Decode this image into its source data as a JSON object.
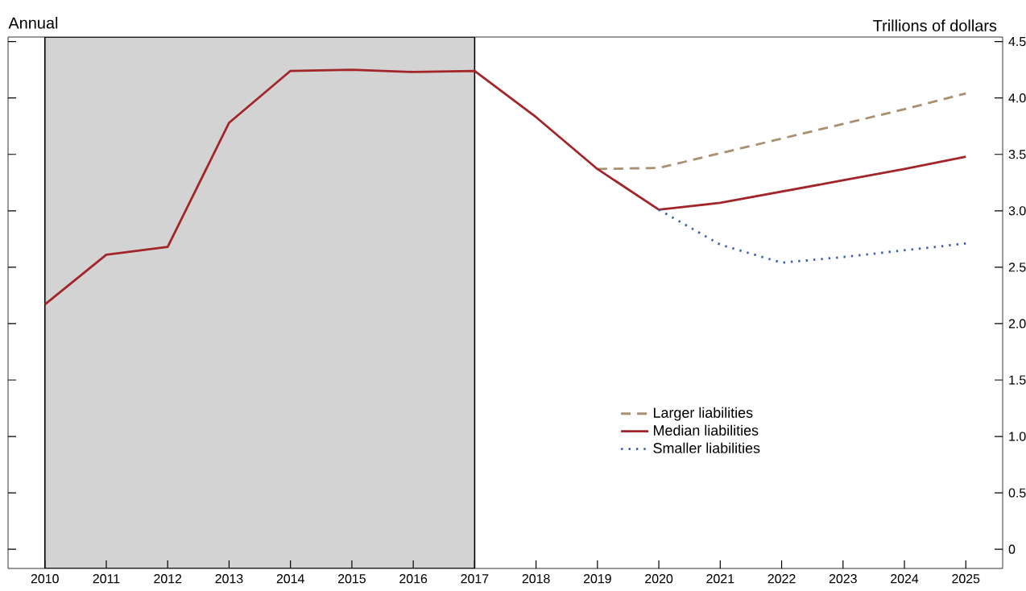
{
  "chart_data": {
    "type": "line",
    "ylabel": "Trillions of dollars",
    "annotations": [
      "Annual"
    ],
    "xlim": [
      2009.4,
      2025.6
    ],
    "ylim": [
      -0.17,
      4.54
    ],
    "xticks": [
      2010,
      2011,
      2012,
      2013,
      2014,
      2015,
      2016,
      2017,
      2018,
      2019,
      2020,
      2021,
      2022,
      2023,
      2024,
      2025
    ],
    "yticks": [
      0,
      0.5,
      {
        "value": 1,
        "label": "1.0"
      },
      1.5,
      {
        "value": 2,
        "label": "2.0"
      },
      2.5,
      {
        "value": 3,
        "label": "3.0"
      },
      3.5,
      {
        "value": 4,
        "label": "4.0"
      },
      4.5
    ],
    "grid": false,
    "legend": "bottom right",
    "marker": "none",
    "bands": [
      {
        "axis": "x",
        "from": 2010,
        "to": 2017,
        "color": "#d3d3d3"
      }
    ],
    "series": [
      {
        "name": "Larger liabilities",
        "color": "#a89070",
        "line_style": "dashed",
        "x": [
          2019,
          2020,
          2021,
          2022,
          2023,
          2024,
          2025
        ],
        "values": [
          3.37,
          3.38,
          3.51,
          3.64,
          3.77,
          3.9,
          4.04
        ]
      },
      {
        "name": "Median liabilities",
        "color": "#a2252a",
        "line_style": "solid",
        "x": [
          2010,
          2011,
          2012,
          2013,
          2014,
          2015,
          2016,
          2017,
          2018,
          2019,
          2020,
          2021,
          2022,
          2023,
          2024,
          2025
        ],
        "values": [
          2.17,
          2.61,
          2.68,
          3.78,
          4.24,
          4.25,
          4.23,
          4.24,
          3.83,
          3.37,
          3.01,
          3.07,
          3.17,
          3.27,
          3.37,
          3.48
        ]
      },
      {
        "name": "Smaller liabilities",
        "color": "#3a5fae",
        "line_style": "dotted",
        "x": [
          2020,
          2021,
          2022,
          2023,
          2024,
          2025
        ],
        "values": [
          3.01,
          2.7,
          2.54,
          2.59,
          2.65,
          2.71
        ]
      }
    ]
  }
}
